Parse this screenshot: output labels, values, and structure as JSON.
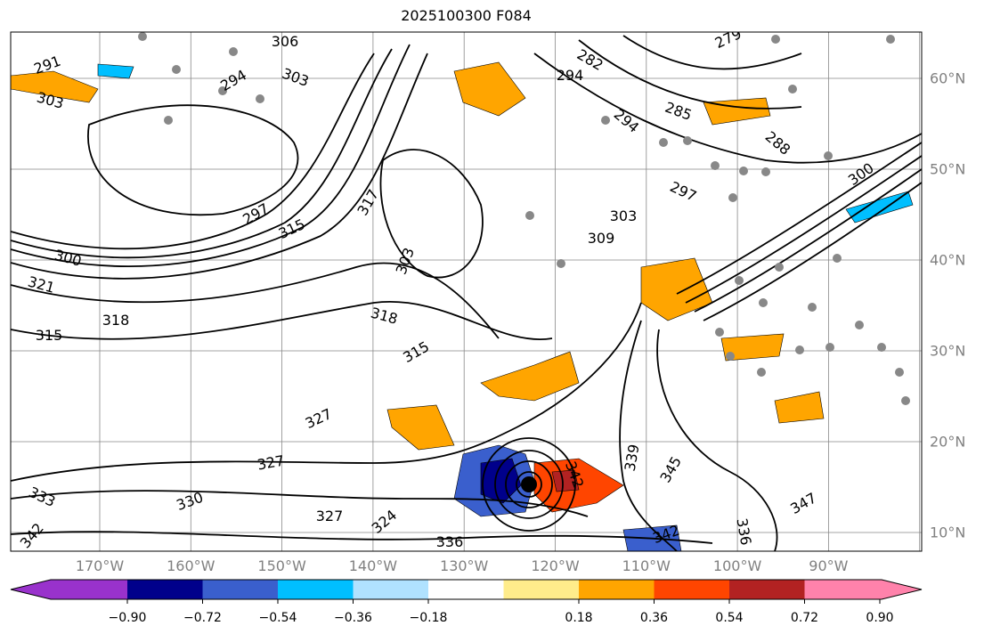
{
  "title": "2025100300 F084",
  "lon_labels": [
    "170°W",
    "160°W",
    "150°W",
    "140°W",
    "130°W",
    "120°W",
    "110°W",
    "100°W",
    "90°W"
  ],
  "lat_labels": [
    "60°N",
    "50°N",
    "40°N",
    "30°N",
    "20°N",
    "10°N"
  ],
  "colorbar": {
    "ticks": [
      "−0.90",
      "−0.72",
      "−0.54",
      "−0.36",
      "−0.18",
      "0.18",
      "0.36",
      "0.54",
      "0.72",
      "0.90"
    ],
    "colors": [
      "#9932cc",
      "#00008b",
      "#3a5fcd",
      "#00bfff",
      "#b0e2ff",
      "#ffffff",
      "#ffec8b",
      "#ffa500",
      "#ff4500",
      "#b22222",
      "#ff82ab"
    ]
  },
  "contour_labels": [
    "291",
    "303",
    "306",
    "303",
    "294",
    "297",
    "282",
    "279",
    "285",
    "288",
    "294",
    "297",
    "300",
    "294",
    "315",
    "300",
    "321",
    "318",
    "315",
    "317",
    "303",
    "309",
    "303",
    "318",
    "315",
    "327",
    "327",
    "333",
    "330",
    "342",
    "324",
    "327",
    "336",
    "339",
    "342",
    "345",
    "342",
    "336",
    "347"
  ],
  "storm_marker": "tropical-cyclone-center"
}
